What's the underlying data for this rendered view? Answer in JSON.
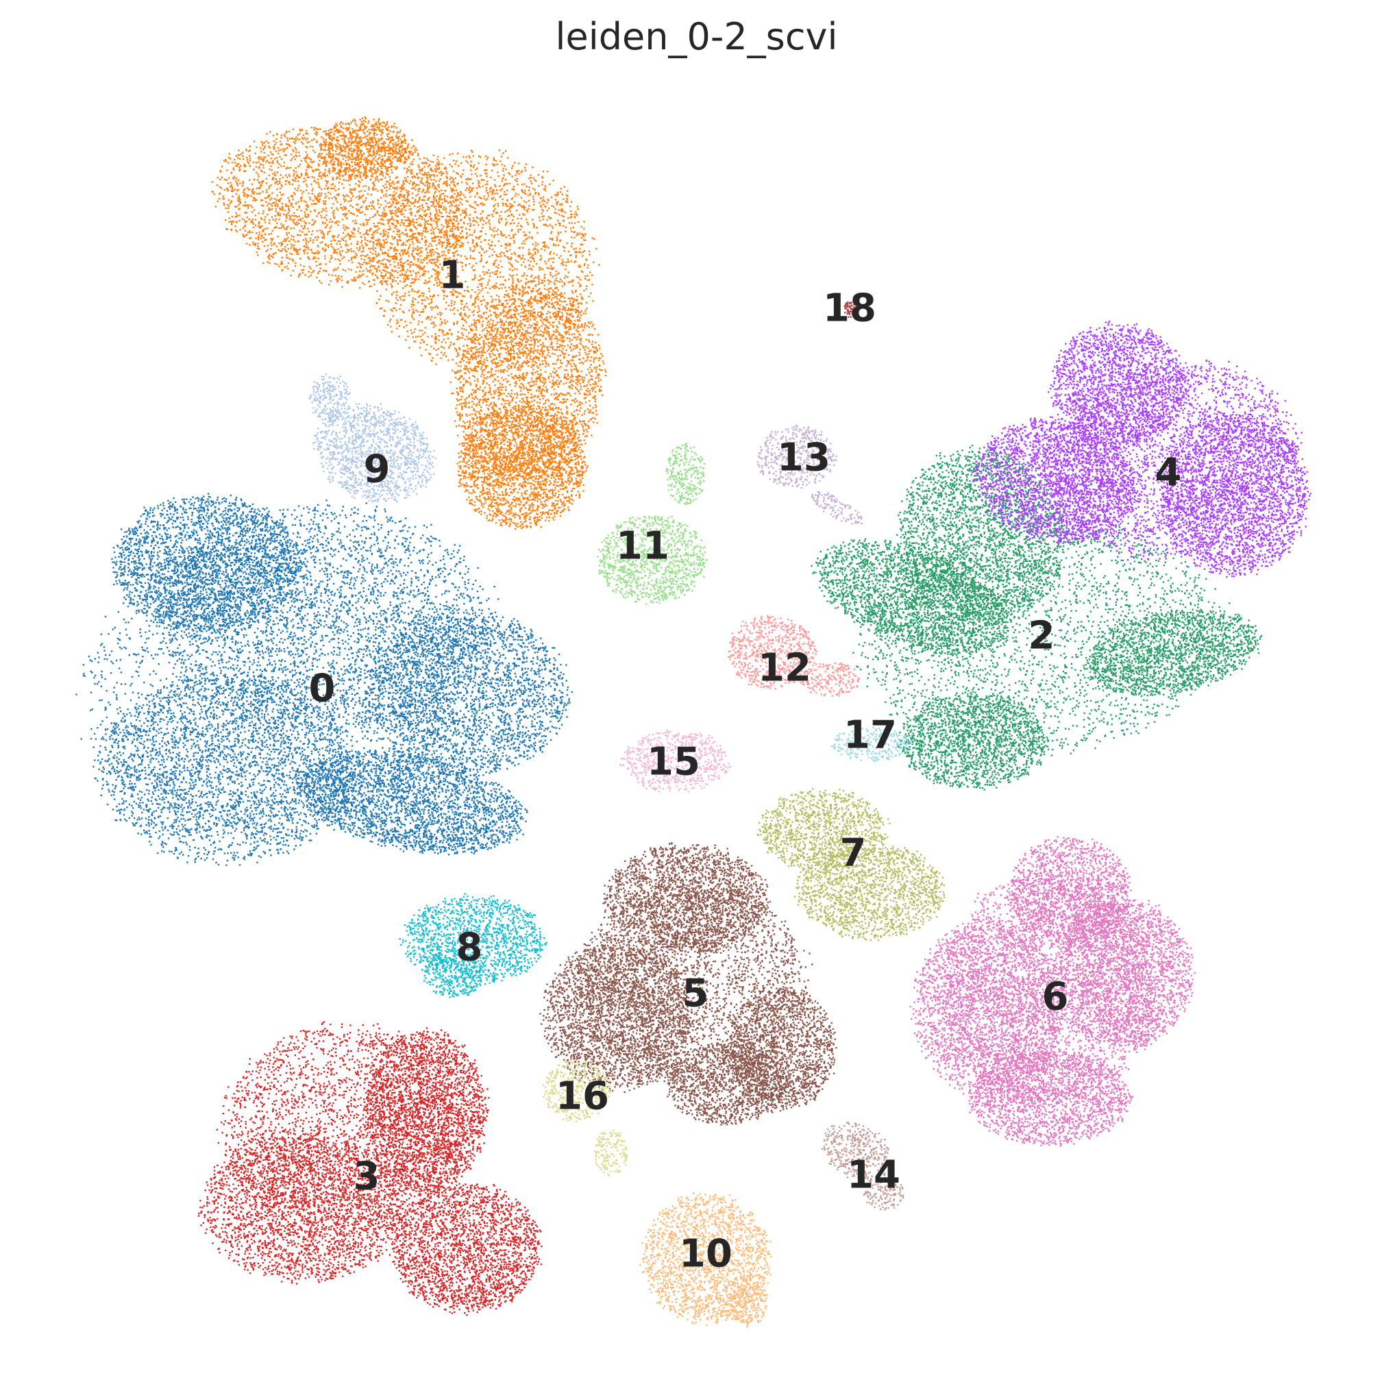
{
  "chart_data": {
    "type": "scatter",
    "title": "leiden_0-2_scvi",
    "xlabel": "",
    "ylabel": "",
    "grid": false,
    "axes_visible": false,
    "legend": "on data",
    "series": [
      {
        "name": "0",
        "color": "#1f77b4",
        "size": "large"
      },
      {
        "name": "1",
        "color": "#ff7f0e",
        "size": "large"
      },
      {
        "name": "2",
        "color": "#279e68",
        "size": "large"
      },
      {
        "name": "3",
        "color": "#d62728",
        "size": "large"
      },
      {
        "name": "4",
        "color": "#aa40fc",
        "size": "large"
      },
      {
        "name": "5",
        "color": "#8c564b",
        "size": "large"
      },
      {
        "name": "6",
        "color": "#e377c2",
        "size": "large"
      },
      {
        "name": "7",
        "color": "#b5bd61",
        "size": "medium"
      },
      {
        "name": "8",
        "color": "#17becf",
        "size": "medium"
      },
      {
        "name": "9",
        "color": "#aec7e8",
        "size": "medium"
      },
      {
        "name": "10",
        "color": "#ffbb78",
        "size": "medium"
      },
      {
        "name": "11",
        "color": "#98df8a",
        "size": "medium"
      },
      {
        "name": "12",
        "color": "#ff9896",
        "size": "small"
      },
      {
        "name": "13",
        "color": "#c5b0d5",
        "size": "small"
      },
      {
        "name": "14",
        "color": "#c49c94",
        "size": "small"
      },
      {
        "name": "15",
        "color": "#f7b6d2",
        "size": "small"
      },
      {
        "name": "16",
        "color": "#dbdb8d",
        "size": "small"
      },
      {
        "name": "17",
        "color": "#9edae5",
        "size": "small"
      },
      {
        "name": "18",
        "color": "#ad494a",
        "size": "tiny"
      }
    ]
  }
}
